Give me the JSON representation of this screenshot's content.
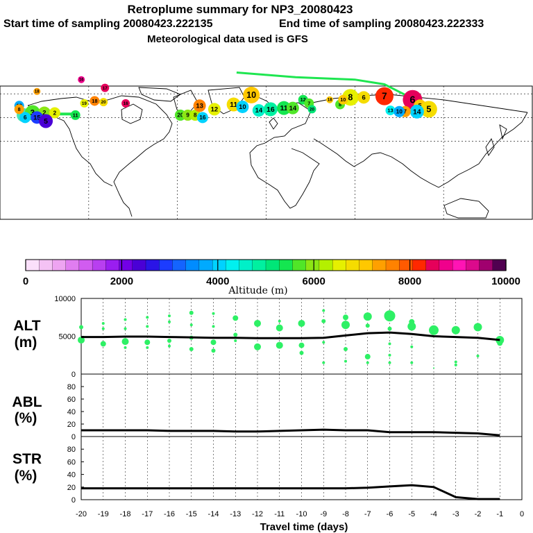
{
  "header": {
    "title": "Retroplume summary for NP3_20080423",
    "start_label": "Start time of sampling 20080423.222135",
    "end_label": "End time of sampling 20080423.222333",
    "met_label": "Meteorological data used is GFS"
  },
  "colors": {
    "palette": [
      "#fbe0fb",
      "#f4c2f4",
      "#eea4f1",
      "#e07df0",
      "#d15cf0",
      "#b83ff0",
      "#9a1ef0",
      "#7200e6",
      "#4a00d6",
      "#2a14e6",
      "#1c3cff",
      "#1464ff",
      "#008cff",
      "#00aaff",
      "#00d2ff",
      "#00f0f0",
      "#00f0c8",
      "#00f0a0",
      "#00e678",
      "#14e650",
      "#50e628",
      "#8ce614",
      "#b4f000",
      "#e6f000",
      "#f5dc00",
      "#ffc800",
      "#ffa000",
      "#ff8200",
      "#ff5a00",
      "#ff2800",
      "#e6005a",
      "#f0008c",
      "#ff14b4",
      "#dc0a8c",
      "#a0006e",
      "#500050"
    ],
    "track_green": "#1ee650",
    "plot_green": "#2ef065",
    "mean_line": "#000000"
  },
  "map_data": {
    "sites": [
      {
        "lon": -164,
        "lat": 42,
        "age": 4,
        "color": "#46e6b4",
        "size": 10
      },
      {
        "lon": -158,
        "lat": 44,
        "age": 3,
        "color": "#50e628",
        "size": 11
      },
      {
        "lon": -150,
        "lat": 44,
        "age": 2,
        "color": "#8ce614",
        "size": 9
      },
      {
        "lon": -143,
        "lat": 44,
        "age": 2,
        "color": "#e6f000",
        "size": 8
      },
      {
        "lon": -163,
        "lat": 40,
        "age": 6,
        "color": "#00d2ff",
        "size": 8
      },
      {
        "lon": -155,
        "lat": 40,
        "age": 15,
        "color": "#1c3cff",
        "size": 9
      },
      {
        "lon": -149,
        "lat": 37,
        "age": 5,
        "color": "#4a00d6",
        "size": 10
      },
      {
        "lon": -167,
        "lat": 50,
        "age": 10,
        "color": "#00aaff",
        "size": 7
      },
      {
        "lon": -167,
        "lat": 47,
        "age": 8,
        "color": "#ffa000",
        "size": 7
      },
      {
        "lon": -129,
        "lat": 42,
        "age": 11,
        "color": "#14e650",
        "size": 7
      },
      {
        "lon": -123,
        "lat": 52,
        "age": 19,
        "color": "#e6f000",
        "size": 6
      },
      {
        "lon": -116,
        "lat": 54,
        "age": 18,
        "color": "#ff8200",
        "size": 7
      },
      {
        "lon": -110,
        "lat": 53,
        "age": 20,
        "color": "#f5dc00",
        "size": 6
      },
      {
        "lon": -95,
        "lat": 52,
        "age": 16,
        "color": "#e6005a",
        "size": 6
      },
      {
        "lon": -109,
        "lat": 65,
        "age": 17,
        "color": "#e6005a",
        "size": 6
      },
      {
        "lon": -155,
        "lat": 62,
        "age": 18,
        "color": "#ffa000",
        "size": 5
      },
      {
        "lon": -58,
        "lat": 42,
        "age": 20,
        "color": "#50e628",
        "size": 8
      },
      {
        "lon": -53,
        "lat": 42,
        "age": 9,
        "color": "#8ce614",
        "size": 8
      },
      {
        "lon": -48,
        "lat": 42,
        "age": 8,
        "color": "#b4f000",
        "size": 8
      },
      {
        "lon": -43,
        "lat": 40,
        "age": 16,
        "color": "#00d2ff",
        "size": 8
      },
      {
        "lon": -45,
        "lat": 50,
        "age": 13,
        "color": "#ff8200",
        "size": 9
      },
      {
        "lon": -35,
        "lat": 47,
        "age": 12,
        "color": "#e6f000",
        "size": 9
      },
      {
        "lon": -22,
        "lat": 51,
        "age": 11,
        "color": "#f5dc00",
        "size": 10
      },
      {
        "lon": -16,
        "lat": 49,
        "age": 10,
        "color": "#00d2ff",
        "size": 9
      },
      {
        "lon": -10,
        "lat": 59,
        "age": 10,
        "color": "#ffc800",
        "size": 12
      },
      {
        "lon": -5,
        "lat": 46,
        "age": 14,
        "color": "#00f0c8",
        "size": 9
      },
      {
        "lon": 3,
        "lat": 47,
        "age": 16,
        "color": "#00f0a0",
        "size": 10
      },
      {
        "lon": 12,
        "lat": 48,
        "age": 11,
        "color": "#14e650",
        "size": 10
      },
      {
        "lon": 18,
        "lat": 48,
        "age": 14,
        "color": "#50e628",
        "size": 9
      },
      {
        "lon": 25,
        "lat": 55,
        "age": 12,
        "color": "#14e650",
        "size": 7
      },
      {
        "lon": 29,
        "lat": 52,
        "age": 7,
        "color": "#50e628",
        "size": 7
      },
      {
        "lon": 31,
        "lat": 47,
        "age": 20,
        "color": "#00e678",
        "size": 6
      },
      {
        "lon": 43,
        "lat": 55,
        "age": 18,
        "color": "#ffc800",
        "size": 5
      },
      {
        "lon": 50,
        "lat": 51,
        "age": 8,
        "color": "#50e628",
        "size": 7
      },
      {
        "lon": 57,
        "lat": 57,
        "age": 8,
        "color": "#e6f000",
        "size": 12
      },
      {
        "lon": 66,
        "lat": 57,
        "age": 6,
        "color": "#f5dc00",
        "size": 9
      },
      {
        "lon": 52,
        "lat": 55,
        "age": 10,
        "color": "#ffc800",
        "size": 7
      },
      {
        "lon": 80,
        "lat": 58,
        "age": 7,
        "color": "#ff2800",
        "size": 13
      },
      {
        "lon": 99,
        "lat": 55,
        "age": 6,
        "color": "#e6005a",
        "size": 14
      },
      {
        "lon": 104,
        "lat": 50,
        "age": 5,
        "color": "#ffc800",
        "size": 9
      },
      {
        "lon": 110,
        "lat": 47,
        "age": 5,
        "color": "#f5dc00",
        "size": 12
      },
      {
        "lon": 102,
        "lat": 45,
        "age": 14,
        "color": "#00d2ff",
        "size": 10
      },
      {
        "lon": 94,
        "lat": 45,
        "age": 7,
        "color": "#ffa000",
        "size": 8
      },
      {
        "lon": 84,
        "lat": 46,
        "age": 13,
        "color": "#00f0f0",
        "size": 7
      },
      {
        "lon": 90,
        "lat": 45,
        "age": 10,
        "color": "#00aaff",
        "size": 8
      },
      {
        "lon": -125,
        "lat": 72,
        "age": 16,
        "color": "#f0008c",
        "size": 5
      }
    ],
    "track": [
      {
        "lon": -128,
        "lat": 43
      },
      {
        "lon": -142,
        "lat": 43
      },
      {
        "lon": -152,
        "lat": 43
      },
      {
        "lon": -162,
        "lat": 44
      },
      {
        "lon": -168,
        "lat": 45
      }
    ],
    "north_track": [
      {
        "lon": -20,
        "lat": 78
      },
      {
        "lon": 0,
        "lat": 76
      },
      {
        "lon": 20,
        "lat": 74
      },
      {
        "lon": 40,
        "lat": 73
      },
      {
        "lon": 60,
        "lat": 72
      },
      {
        "lon": 80,
        "lat": 68
      },
      {
        "lon": 99,
        "lat": 56
      }
    ]
  },
  "colorbar": {
    "ticks": [
      "0",
      "2000",
      "4000",
      "6000",
      "8000",
      "10000"
    ],
    "label": "Altitude (m)"
  },
  "chart_data": [
    {
      "type": "line",
      "ylabel": "ALT",
      "yunit": "(m)",
      "ylim": [
        0,
        10000
      ],
      "yticks": [
        "10000",
        "5000",
        "0"
      ],
      "x": [
        -20,
        -19,
        -18,
        -17,
        -16,
        -15,
        -14,
        -13,
        -12,
        -11,
        -10,
        -9,
        -8,
        -7,
        -6,
        -5,
        -4,
        -3,
        -2,
        -1
      ],
      "series": [
        {
          "name": "mean altitude",
          "values": [
            4900,
            4900,
            4950,
            4950,
            4900,
            4850,
            4800,
            4800,
            4750,
            4750,
            4750,
            4800,
            5100,
            5400,
            5500,
            5300,
            5000,
            4900,
            4800,
            4500
          ]
        }
      ],
      "scatter": [
        {
          "x": -20,
          "y": 6200,
          "s": 3
        },
        {
          "x": -20,
          "y": 4500,
          "s": 5
        },
        {
          "x": -19,
          "y": 6700,
          "s": 2
        },
        {
          "x": -19,
          "y": 6000,
          "s": 2
        },
        {
          "x": -19,
          "y": 4000,
          "s": 4
        },
        {
          "x": -18,
          "y": 7200,
          "s": 2
        },
        {
          "x": -18,
          "y": 6000,
          "s": 2
        },
        {
          "x": -18,
          "y": 4300,
          "s": 5
        },
        {
          "x": -18,
          "y": 3500,
          "s": 2
        },
        {
          "x": -17,
          "y": 7500,
          "s": 2
        },
        {
          "x": -17,
          "y": 6300,
          "s": 2
        },
        {
          "x": -17,
          "y": 4200,
          "s": 4
        },
        {
          "x": -17,
          "y": 3500,
          "s": 2
        },
        {
          "x": -16,
          "y": 7700,
          "s": 2
        },
        {
          "x": -16,
          "y": 6900,
          "s": 2
        },
        {
          "x": -16,
          "y": 4400,
          "s": 3
        },
        {
          "x": -16,
          "y": 3700,
          "s": 2
        },
        {
          "x": -15,
          "y": 8100,
          "s": 3
        },
        {
          "x": -15,
          "y": 6500,
          "s": 2
        },
        {
          "x": -15,
          "y": 4800,
          "s": 3
        },
        {
          "x": -15,
          "y": 3300,
          "s": 3
        },
        {
          "x": -14,
          "y": 8000,
          "s": 2
        },
        {
          "x": -14,
          "y": 6300,
          "s": 2
        },
        {
          "x": -14,
          "y": 4200,
          "s": 4
        },
        {
          "x": -14,
          "y": 3100,
          "s": 3
        },
        {
          "x": -13,
          "y": 7400,
          "s": 4
        },
        {
          "x": -13,
          "y": 5200,
          "s": 3
        },
        {
          "x": -13,
          "y": 4400,
          "s": 2
        },
        {
          "x": -12,
          "y": 6700,
          "s": 5
        },
        {
          "x": -12,
          "y": 3600,
          "s": 5
        },
        {
          "x": -11,
          "y": 7000,
          "s": 2
        },
        {
          "x": -11,
          "y": 6100,
          "s": 5
        },
        {
          "x": -11,
          "y": 3800,
          "s": 5
        },
        {
          "x": -10,
          "y": 6700,
          "s": 5
        },
        {
          "x": -10,
          "y": 3800,
          "s": 4
        },
        {
          "x": -10,
          "y": 2800,
          "s": 3
        },
        {
          "x": -9,
          "y": 8400,
          "s": 2
        },
        {
          "x": -9,
          "y": 7000,
          "s": 3
        },
        {
          "x": -9,
          "y": 4200,
          "s": 2
        },
        {
          "x": -9,
          "y": 1500,
          "s": 2
        },
        {
          "x": -8,
          "y": 7500,
          "s": 4
        },
        {
          "x": -8,
          "y": 6500,
          "s": 6
        },
        {
          "x": -8,
          "y": 3300,
          "s": 3
        },
        {
          "x": -8,
          "y": 1700,
          "s": 2
        },
        {
          "x": -7,
          "y": 7600,
          "s": 6
        },
        {
          "x": -7,
          "y": 6400,
          "s": 3
        },
        {
          "x": -7,
          "y": 2300,
          "s": 4
        },
        {
          "x": -7,
          "y": 1500,
          "s": 2
        },
        {
          "x": -6,
          "y": 7700,
          "s": 8
        },
        {
          "x": -6,
          "y": 6000,
          "s": 3
        },
        {
          "x": -6,
          "y": 4000,
          "s": 2
        },
        {
          "x": -6,
          "y": 2500,
          "s": 2
        },
        {
          "x": -6,
          "y": 1500,
          "s": 2
        },
        {
          "x": -5,
          "y": 6900,
          "s": 4
        },
        {
          "x": -5,
          "y": 6300,
          "s": 6
        },
        {
          "x": -5,
          "y": 3600,
          "s": 2
        },
        {
          "x": -5,
          "y": 1500,
          "s": 2
        },
        {
          "x": -4,
          "y": 5800,
          "s": 7
        },
        {
          "x": -4,
          "y": 800,
          "s": 1
        },
        {
          "x": -3,
          "y": 5800,
          "s": 6
        },
        {
          "x": -3,
          "y": 1600,
          "s": 2
        },
        {
          "x": -3,
          "y": 1200,
          "s": 2
        },
        {
          "x": -2,
          "y": 6200,
          "s": 6
        },
        {
          "x": -2,
          "y": 2400,
          "s": 2
        },
        {
          "x": -1,
          "y": 4500,
          "s": 6
        },
        {
          "x": -1,
          "y": 4100,
          "s": 4
        }
      ]
    },
    {
      "type": "line",
      "ylabel": "ABL",
      "yunit": "(%)",
      "ylim": [
        0,
        100
      ],
      "yticks": [
        "80",
        "60",
        "40",
        "20",
        "0"
      ],
      "x": [
        -20,
        -19,
        -18,
        -17,
        -16,
        -15,
        -14,
        -13,
        -12,
        -11,
        -10,
        -9,
        -8,
        -7,
        -6,
        -5,
        -4,
        -3,
        -2,
        -1
      ],
      "series": [
        {
          "name": "ABL",
          "values": [
            10,
            10,
            10,
            10,
            9,
            9,
            9,
            8,
            8,
            9,
            10,
            11,
            10,
            10,
            7,
            7,
            7,
            6,
            5,
            2
          ]
        }
      ]
    },
    {
      "type": "line",
      "ylabel": "STR",
      "yunit": "(%)",
      "ylim": [
        0,
        100
      ],
      "yticks": [
        "80",
        "60",
        "40",
        "20",
        "0"
      ],
      "xlabel": "Travel time (days)",
      "xticks": [
        "-20",
        "-19",
        "-18",
        "-17",
        "-16",
        "-15",
        "-14",
        "-13",
        "-12",
        "-11",
        "-10",
        "-9",
        "-8",
        "-7",
        "-6",
        "-5",
        "-4",
        "-3",
        "-2",
        "-1",
        "0"
      ],
      "x": [
        -20,
        -19,
        -18,
        -17,
        -16,
        -15,
        -14,
        -13,
        -12,
        -11,
        -10,
        -9,
        -8,
        -7,
        -6,
        -5,
        -4,
        -3,
        -2,
        -1
      ],
      "series": [
        {
          "name": "STR",
          "values": [
            18,
            18,
            18,
            18,
            18,
            18,
            18,
            18,
            18,
            18,
            18,
            18,
            18,
            19,
            21,
            23,
            20,
            4,
            1,
            1
          ]
        }
      ]
    }
  ]
}
